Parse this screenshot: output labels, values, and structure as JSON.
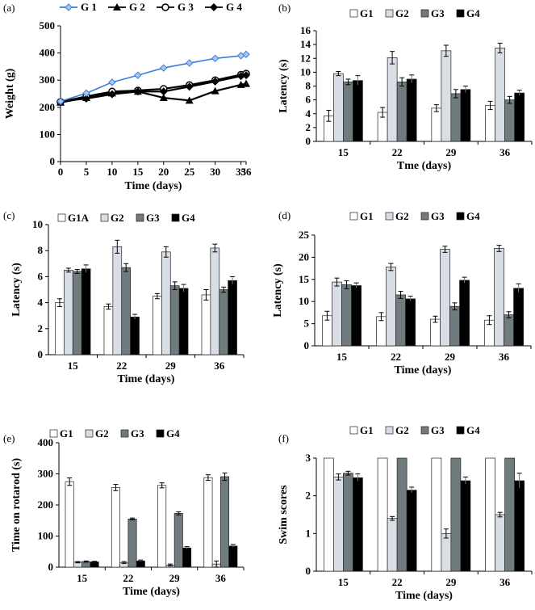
{
  "panel_labels": [
    "(a)",
    "(b)",
    "(c)",
    "(d)",
    "(e)",
    "(f)"
  ],
  "colors": {
    "G1": "#ffffff",
    "G2": "#d9dde6",
    "G3": "#6f7b7c",
    "G4": "#000000",
    "G1_line": "#3c7dd9",
    "G1_marker": "#a8c8ef",
    "bar_stroke": "#222222"
  },
  "chart_data": [
    {
      "id": "a",
      "type": "line",
      "x": [
        0,
        5,
        10,
        15,
        20,
        25,
        30,
        35,
        36
      ],
      "xticks": [
        "0",
        "5",
        "10",
        "15",
        "20",
        "25",
        "30",
        "35",
        "36"
      ],
      "yticks": [
        "0",
        "100",
        "200",
        "300",
        "400",
        "500"
      ],
      "ylim": [
        0,
        500
      ],
      "xlabel": "Time (days)",
      "ylabel": "Weight (g)",
      "series": [
        {
          "name": "G 1",
          "marker": "diamond-blue",
          "values": [
            222,
            252,
            292,
            318,
            345,
            363,
            380,
            390,
            395
          ]
        },
        {
          "name": "G 2",
          "marker": "triangle",
          "values": [
            218,
            235,
            252,
            258,
            235,
            225,
            260,
            283,
            287
          ]
        },
        {
          "name": "G 3",
          "marker": "circle",
          "values": [
            220,
            240,
            258,
            262,
            268,
            282,
            300,
            320,
            324
          ]
        },
        {
          "name": "G 4",
          "marker": "diamond",
          "values": [
            222,
            232,
            248,
            258,
            258,
            276,
            295,
            315,
            318
          ]
        }
      ]
    },
    {
      "id": "b",
      "type": "bar",
      "categories": [
        "15",
        "22",
        "29",
        "36"
      ],
      "yticks": [
        "0",
        "2",
        "4",
        "6",
        "8",
        "10",
        "12",
        "14",
        "16"
      ],
      "ylim": [
        0,
        16
      ],
      "xlabel": "Tme (days)",
      "ylabel": "Latency (s)",
      "series": [
        {
          "name": "G1",
          "values": [
            3.7,
            4.2,
            4.8,
            5.2
          ],
          "errors": [
            0.8,
            0.7,
            0.5,
            0.6
          ]
        },
        {
          "name": "G2",
          "values": [
            9.8,
            12.1,
            13.1,
            13.5
          ],
          "errors": [
            0.3,
            0.9,
            0.8,
            0.7
          ]
        },
        {
          "name": "G3",
          "values": [
            8.6,
            8.6,
            6.9,
            6.0
          ],
          "errors": [
            0.4,
            0.6,
            0.6,
            0.5
          ]
        },
        {
          "name": "G4",
          "values": [
            8.8,
            9.0,
            7.5,
            7.0
          ],
          "errors": [
            0.7,
            0.6,
            0.5,
            0.4
          ]
        }
      ]
    },
    {
      "id": "c",
      "type": "bar",
      "categories": [
        "15",
        "22",
        "29",
        "36"
      ],
      "yticks": [
        "0",
        "2",
        "4",
        "6",
        "8",
        "10"
      ],
      "ylim": [
        0,
        10
      ],
      "xlabel": "Time (days)",
      "ylabel": "Latency (s)",
      "series": [
        {
          "name": "G1A",
          "values": [
            4.0,
            3.7,
            4.5,
            4.6
          ],
          "errors": [
            0.3,
            0.2,
            0.2,
            0.4
          ]
        },
        {
          "name": "G2",
          "values": [
            6.5,
            8.3,
            7.9,
            8.2
          ],
          "errors": [
            0.15,
            0.5,
            0.4,
            0.3
          ]
        },
        {
          "name": "G3",
          "values": [
            6.4,
            6.7,
            5.3,
            5.0
          ],
          "errors": [
            0.15,
            0.3,
            0.3,
            0.2
          ]
        },
        {
          "name": "G4",
          "values": [
            6.6,
            2.9,
            5.1,
            5.7
          ],
          "errors": [
            0.3,
            0.2,
            0.3,
            0.3
          ]
        }
      ]
    },
    {
      "id": "d",
      "type": "bar",
      "categories": [
        "15",
        "22",
        "29",
        "36"
      ],
      "yticks": [
        "0",
        "5",
        "10",
        "15",
        "20",
        "25"
      ],
      "ylim": [
        0,
        25
      ],
      "xlabel": "Time (days)",
      "ylabel": "Latency (s)",
      "series": [
        {
          "name": "G1",
          "values": [
            6.8,
            6.6,
            6.0,
            5.8
          ],
          "errors": [
            1.0,
            0.9,
            0.7,
            1.0
          ]
        },
        {
          "name": "G2",
          "values": [
            14.4,
            17.8,
            21.8,
            22.0
          ],
          "errors": [
            0.9,
            0.8,
            0.7,
            0.7
          ]
        },
        {
          "name": "G3",
          "values": [
            13.8,
            11.5,
            8.9,
            7.0
          ],
          "errors": [
            0.9,
            0.8,
            0.8,
            0.7
          ]
        },
        {
          "name": "G4",
          "values": [
            13.6,
            10.6,
            14.8,
            13.0
          ],
          "errors": [
            0.6,
            0.6,
            0.7,
            1.0
          ]
        }
      ]
    },
    {
      "id": "e",
      "type": "bar",
      "categories": [
        "15",
        "22",
        "29",
        "36"
      ],
      "yticks": [
        "0",
        "100",
        "200",
        "300",
        "400"
      ],
      "ylim": [
        0,
        400
      ],
      "xlabel": "Time (days)",
      "ylabel": "Time on rotarod (s)",
      "series": [
        {
          "name": "G1",
          "values": [
            275,
            256,
            263,
            288
          ],
          "errors": [
            12,
            10,
            8,
            9
          ]
        },
        {
          "name": "G2",
          "values": [
            16,
            15,
            7,
            10
          ],
          "errors": [
            2,
            3,
            3,
            10
          ]
        },
        {
          "name": "G3",
          "values": [
            18,
            155,
            173,
            291
          ],
          "errors": [
            2,
            3,
            5,
            12
          ]
        },
        {
          "name": "G4",
          "values": [
            17,
            20,
            62,
            68
          ],
          "errors": [
            2,
            3,
            4,
            5
          ]
        }
      ]
    },
    {
      "id": "f",
      "type": "bar",
      "categories": [
        "15",
        "22",
        "29",
        "36"
      ],
      "yticks": [
        "0",
        "1",
        "2",
        "3"
      ],
      "ylim": [
        0,
        3
      ],
      "xlabel": "Time (days)",
      "ylabel": "Swim scores",
      "series": [
        {
          "name": "G1",
          "values": [
            3.0,
            3.0,
            3.0,
            3.0
          ],
          "errors": [
            0,
            0,
            0,
            0
          ]
        },
        {
          "name": "G2",
          "values": [
            2.5,
            1.4,
            1.0,
            1.5
          ],
          "errors": [
            0.08,
            0.05,
            0.12,
            0.06
          ]
        },
        {
          "name": "G3",
          "values": [
            2.6,
            3.0,
            3.0,
            3.0
          ],
          "errors": [
            0.05,
            0,
            0,
            0
          ]
        },
        {
          "name": "G4",
          "values": [
            2.48,
            2.15,
            2.4,
            2.4
          ],
          "errors": [
            0.1,
            0.08,
            0.1,
            0.2
          ]
        }
      ]
    }
  ]
}
